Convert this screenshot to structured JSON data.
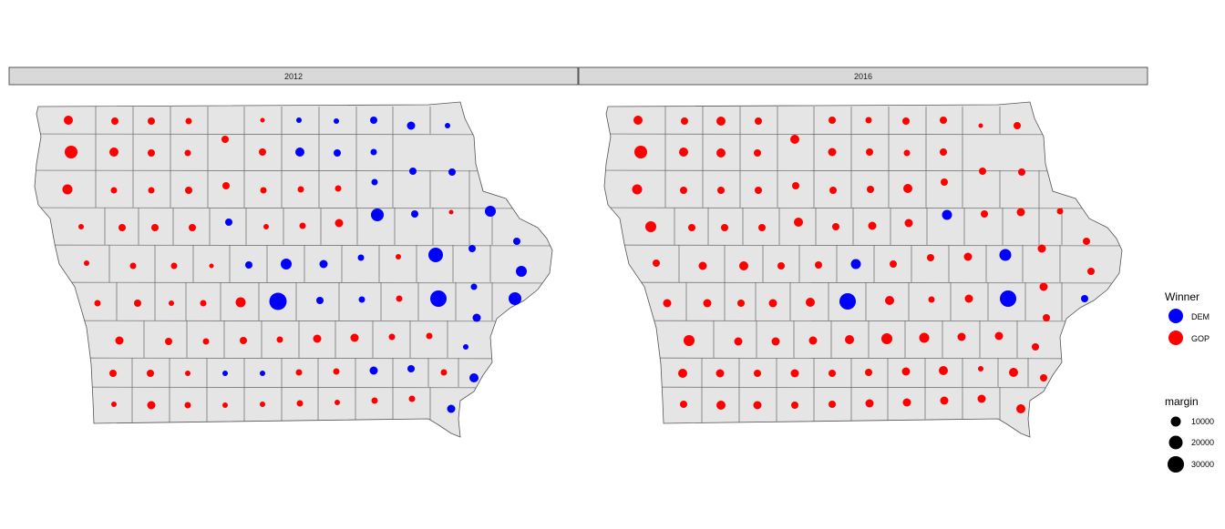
{
  "chart_data": {
    "type": "map",
    "facets": [
      {
        "label": "2012",
        "counties": [
          [
            "GOP",
            10000
          ],
          [
            "GOP",
            6400
          ],
          [
            "GOP",
            6400
          ],
          [
            "GOP",
            4900
          ],
          [
            "GOP",
            2500
          ],
          [
            "DEM",
            3600
          ],
          [
            "DEM",
            3600
          ],
          [
            "DEM",
            6400
          ],
          [
            "DEM",
            8100
          ],
          [
            "DEM",
            3600
          ],
          [
            "GOP",
            6400
          ],
          [
            "GOP",
            19600
          ],
          [
            "GOP",
            10000
          ],
          [
            "GOP",
            6400
          ],
          [
            "GOP",
            4900
          ],
          [
            "GOP",
            6400
          ],
          [
            "DEM",
            10000
          ],
          [
            "DEM",
            6400
          ],
          [
            "DEM",
            4900
          ],
          [
            "GOP",
            12100
          ],
          [
            "GOP",
            4900
          ],
          [
            "GOP",
            4900
          ],
          [
            "GOP",
            6400
          ],
          [
            "GOP",
            6400
          ],
          [
            "GOP",
            4900
          ],
          [
            "GOP",
            4900
          ],
          [
            "GOP",
            4900
          ],
          [
            "DEM",
            4900
          ],
          [
            "DEM",
            6400
          ],
          [
            "DEM",
            6400
          ],
          [
            "GOP",
            3600
          ],
          [
            "GOP",
            6400
          ],
          [
            "GOP",
            6400
          ],
          [
            "GOP",
            6400
          ],
          [
            "DEM",
            6400
          ],
          [
            "GOP",
            3600
          ],
          [
            "GOP",
            4900
          ],
          [
            "GOP",
            8100
          ],
          [
            "DEM",
            19600
          ],
          [
            "DEM",
            6400
          ],
          [
            "GOP",
            2500
          ],
          [
            "DEM",
            14400
          ],
          [
            "GOP",
            3600
          ],
          [
            "GOP",
            4900
          ],
          [
            "GOP",
            4900
          ],
          [
            "GOP",
            2500
          ],
          [
            "DEM",
            6400
          ],
          [
            "DEM",
            14400
          ],
          [
            "DEM",
            8100
          ],
          [
            "DEM",
            4900
          ],
          [
            "GOP",
            3600
          ],
          [
            "DEM",
            25600
          ],
          [
            "DEM",
            6400
          ],
          [
            "DEM",
            6400
          ],
          [
            "DEM",
            14400
          ],
          [
            "GOP",
            4900
          ],
          [
            "GOP",
            6400
          ],
          [
            "GOP",
            3600
          ],
          [
            "GOP",
            4900
          ],
          [
            "GOP",
            12100
          ],
          [
            "DEM",
            36100
          ],
          [
            "DEM",
            6400
          ],
          [
            "DEM",
            4900
          ],
          [
            "GOP",
            4900
          ],
          [
            "DEM",
            32400
          ],
          [
            "DEM",
            4900
          ],
          [
            "DEM",
            19600
          ],
          [
            "DEM",
            8100
          ],
          [
            "GOP",
            8100
          ],
          [
            "GOP",
            6400
          ],
          [
            "GOP",
            4900
          ],
          [
            "GOP",
            6400
          ],
          [
            "GOP",
            4900
          ],
          [
            "GOP",
            8100
          ],
          [
            "GOP",
            8100
          ],
          [
            "GOP",
            4900
          ],
          [
            "GOP",
            4900
          ],
          [
            "DEM",
            3600
          ],
          [
            "GOP",
            6400
          ],
          [
            "GOP",
            6400
          ],
          [
            "GOP",
            3600
          ],
          [
            "DEM",
            3600
          ],
          [
            "DEM",
            3600
          ],
          [
            "GOP",
            4900
          ],
          [
            "GOP",
            4900
          ],
          [
            "DEM",
            8100
          ],
          [
            "DEM",
            6400
          ],
          [
            "GOP",
            4900
          ],
          [
            "DEM",
            10000
          ],
          [
            "GOP",
            3600
          ],
          [
            "GOP",
            8100
          ],
          [
            "GOP",
            4900
          ],
          [
            "GOP",
            3600
          ],
          [
            "GOP",
            3600
          ],
          [
            "GOP",
            4900
          ],
          [
            "GOP",
            3600
          ],
          [
            "GOP",
            4900
          ],
          [
            "GOP",
            4900
          ],
          [
            "DEM",
            8100
          ]
        ]
      },
      {
        "label": "2016",
        "counties": [
          [
            "GOP",
            10000
          ],
          [
            "GOP",
            6400
          ],
          [
            "GOP",
            10000
          ],
          [
            "GOP",
            6400
          ],
          [
            "GOP",
            6400
          ],
          [
            "GOP",
            4900
          ],
          [
            "GOP",
            6400
          ],
          [
            "GOP",
            6400
          ],
          [
            "GOP",
            2500
          ],
          [
            "GOP",
            6400
          ],
          [
            "GOP",
            10000
          ],
          [
            "GOP",
            19600
          ],
          [
            "GOP",
            10000
          ],
          [
            "GOP",
            10000
          ],
          [
            "GOP",
            6400
          ],
          [
            "GOP",
            8100
          ],
          [
            "GOP",
            6400
          ],
          [
            "GOP",
            4900
          ],
          [
            "GOP",
            6400
          ],
          [
            "GOP",
            12100
          ],
          [
            "GOP",
            6400
          ],
          [
            "GOP",
            6400
          ],
          [
            "GOP",
            6400
          ],
          [
            "GOP",
            6400
          ],
          [
            "GOP",
            6400
          ],
          [
            "GOP",
            6400
          ],
          [
            "GOP",
            10000
          ],
          [
            "GOP",
            6400
          ],
          [
            "GOP",
            6400
          ],
          [
            "GOP",
            6400
          ],
          [
            "GOP",
            14400
          ],
          [
            "GOP",
            6400
          ],
          [
            "GOP",
            6400
          ],
          [
            "GOP",
            6400
          ],
          [
            "GOP",
            10000
          ],
          [
            "GOP",
            6400
          ],
          [
            "GOP",
            8100
          ],
          [
            "GOP",
            8100
          ],
          [
            "DEM",
            12100
          ],
          [
            "GOP",
            6400
          ],
          [
            "GOP",
            8100
          ],
          [
            "GOP",
            4900
          ],
          [
            "GOP",
            6400
          ],
          [
            "GOP",
            8100
          ],
          [
            "GOP",
            10000
          ],
          [
            "GOP",
            6400
          ],
          [
            "GOP",
            6400
          ],
          [
            "DEM",
            12100
          ],
          [
            "GOP",
            6400
          ],
          [
            "GOP",
            6400
          ],
          [
            "GOP",
            8100
          ],
          [
            "DEM",
            16900
          ],
          [
            "GOP",
            8100
          ],
          [
            "GOP",
            6400
          ],
          [
            "GOP",
            6400
          ],
          [
            "GOP",
            8100
          ],
          [
            "GOP",
            8100
          ],
          [
            "GOP",
            6400
          ],
          [
            "GOP",
            8100
          ],
          [
            "GOP",
            10000
          ],
          [
            "DEM",
            32400
          ],
          [
            "GOP",
            10000
          ],
          [
            "GOP",
            4900
          ],
          [
            "GOP",
            8100
          ],
          [
            "DEM",
            32400
          ],
          [
            "GOP",
            8100
          ],
          [
            "DEM",
            6400
          ],
          [
            "GOP",
            6400
          ],
          [
            "GOP",
            14400
          ],
          [
            "GOP",
            8100
          ],
          [
            "GOP",
            8100
          ],
          [
            "GOP",
            8100
          ],
          [
            "GOP",
            10000
          ],
          [
            "GOP",
            14400
          ],
          [
            "GOP",
            12100
          ],
          [
            "GOP",
            8100
          ],
          [
            "GOP",
            8100
          ],
          [
            "GOP",
            6400
          ],
          [
            "GOP",
            10000
          ],
          [
            "GOP",
            8100
          ],
          [
            "GOP",
            6400
          ],
          [
            "GOP",
            8100
          ],
          [
            "GOP",
            6400
          ],
          [
            "GOP",
            6400
          ],
          [
            "GOP",
            8100
          ],
          [
            "GOP",
            10000
          ],
          [
            "GOP",
            3600
          ],
          [
            "GOP",
            10000
          ],
          [
            "GOP",
            6400
          ],
          [
            "GOP",
            6400
          ],
          [
            "GOP",
            10000
          ],
          [
            "GOP",
            8100
          ],
          [
            "GOP",
            6400
          ],
          [
            "GOP",
            6400
          ],
          [
            "GOP",
            8100
          ],
          [
            "GOP",
            8100
          ],
          [
            "GOP",
            8100
          ],
          [
            "GOP",
            8100
          ],
          [
            "GOP",
            10000
          ]
        ]
      }
    ],
    "colors": {
      "DEM": "#0000ff",
      "GOP": "#ff0000",
      "county_fill": "#e5e5e5",
      "strip_fill": "#d9d9d9"
    },
    "legend": {
      "position": "right",
      "winner": {
        "title": "Winner",
        "items": [
          {
            "label": "DEM",
            "key": "DEM"
          },
          {
            "label": "GOP",
            "key": "GOP"
          }
        ]
      },
      "margin": {
        "title": "margin",
        "items": [
          {
            "label": "10000",
            "value": 10000
          },
          {
            "label": "20000",
            "value": 20000
          },
          {
            "label": "30000",
            "value": 30000
          }
        ]
      }
    }
  }
}
